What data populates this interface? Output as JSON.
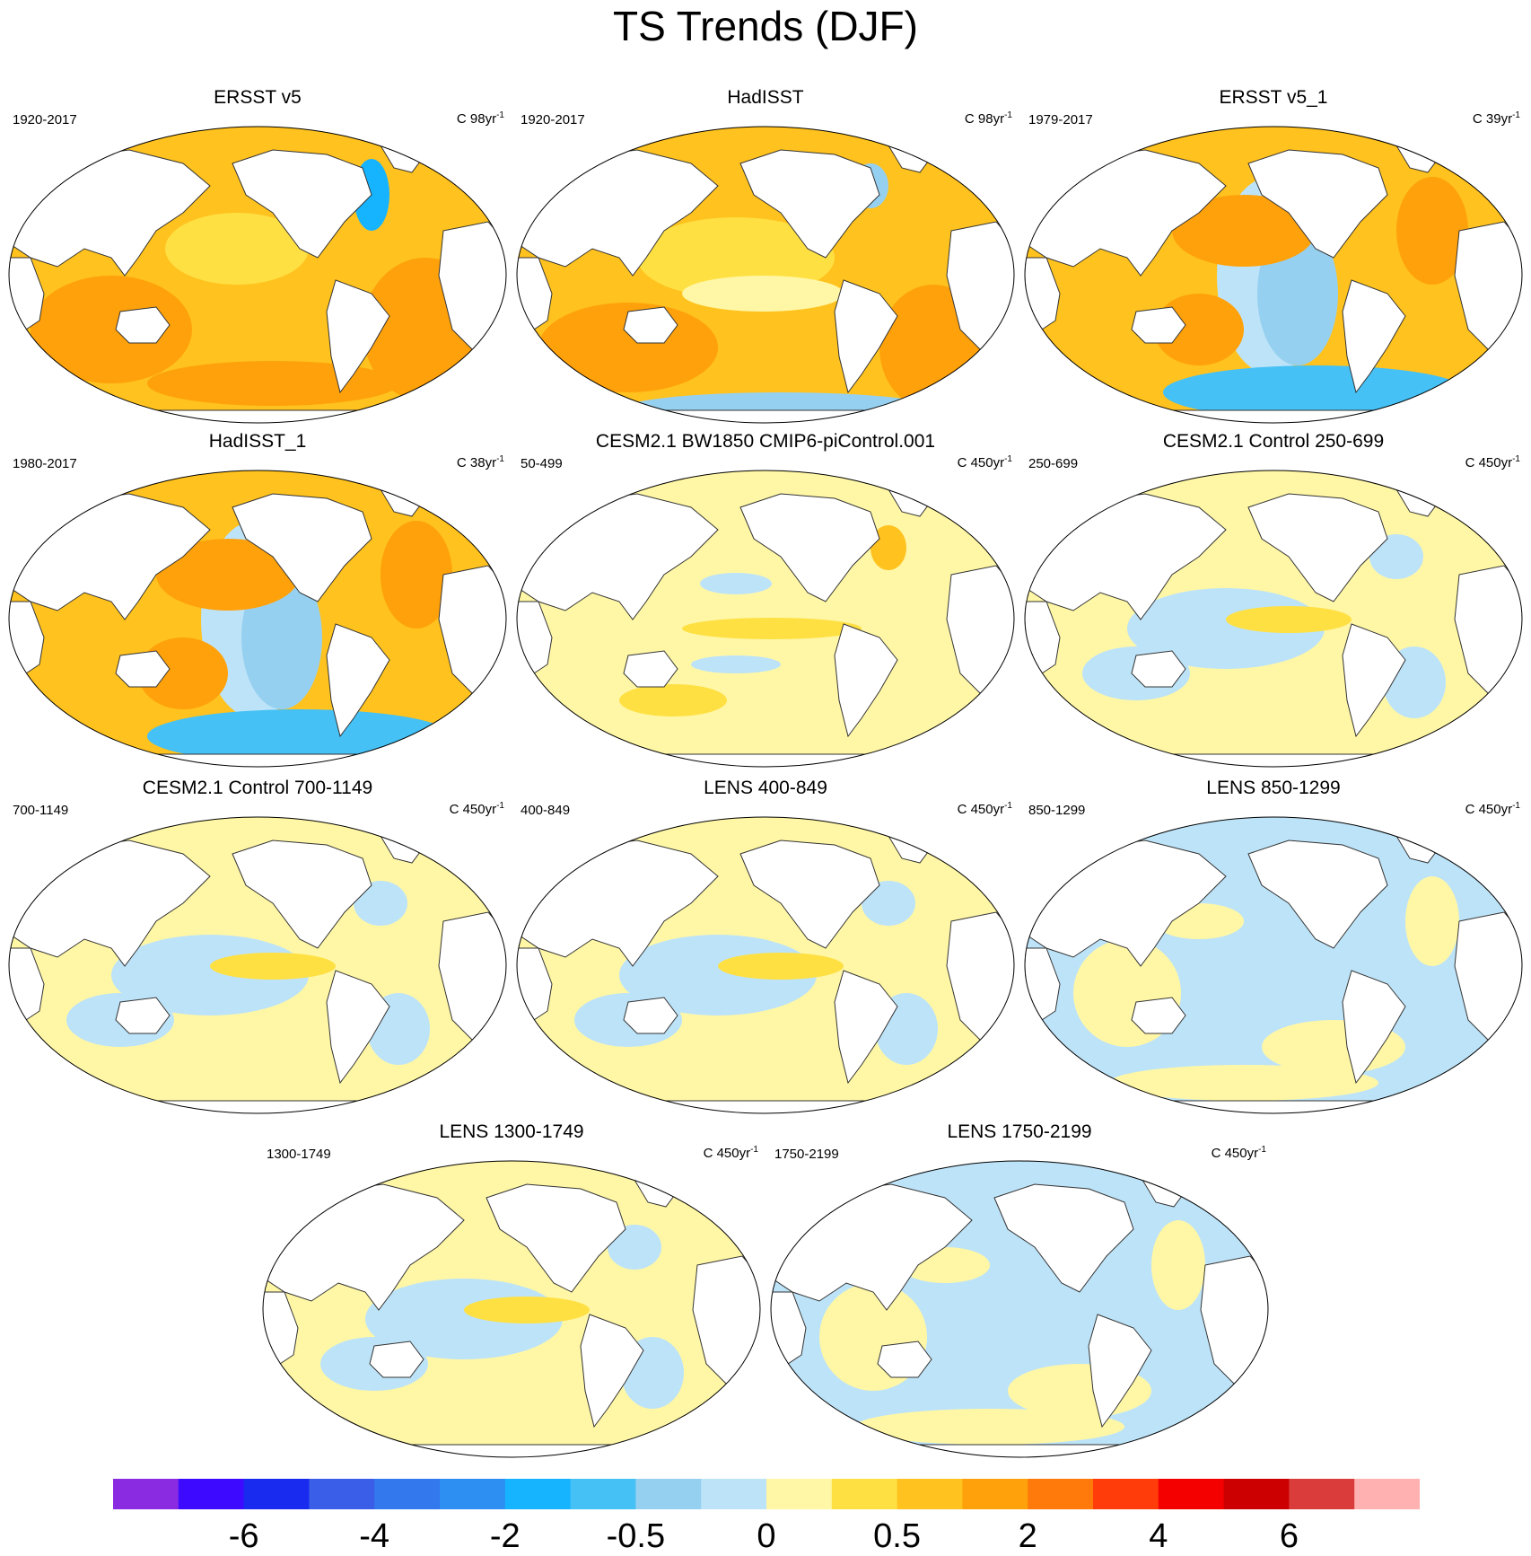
{
  "title": "TS Trends (DJF)",
  "chart_data": {
    "type": "heatmap",
    "title": "TS Trends (DJF)",
    "projection": "robinson-global-maps",
    "colorbar": {
      "colors": [
        "#8a2be2",
        "#3d0aff",
        "#1a2bf0",
        "#3a5ee8",
        "#3478ee",
        "#2e8ff2",
        "#16b4ff",
        "#45c1f5",
        "#96d0f0",
        "#bde3f8",
        "#fff7a6",
        "#ffe043",
        "#ffc21e",
        "#ffa10a",
        "#ff7a0a",
        "#ff3c0a",
        "#f50000",
        "#cc0000",
        "#da3c3c",
        "#ffb0b0"
      ],
      "labels": [
        "-6",
        "-4",
        "-2",
        "-0.5",
        "0",
        "0.5",
        "2",
        "4",
        "6"
      ]
    },
    "panels": [
      {
        "title": "ERSST v5",
        "period": "1920-2017",
        "units": "C 98yr",
        "units_exp": "-1",
        "pattern": "warm_strong"
      },
      {
        "title": "HadISST",
        "period": "1920-2017",
        "units": "C 98yr",
        "units_exp": "-1",
        "pattern": "warm_strong_mixed"
      },
      {
        "title": "ERSST v5_1",
        "period": "1979-2017",
        "units": "C 39yr",
        "units_exp": "-1",
        "pattern": "warm_with_cool_east_pacific"
      },
      {
        "title": "HadISST_1",
        "period": "1980-2017",
        "units": "C 38yr",
        "units_exp": "-1",
        "pattern": "warm_with_cool_east_pacific"
      },
      {
        "title": "CESM2.1 BW1850 CMIP6-piControl.001",
        "period": "50-499",
        "units": "C 450yr",
        "units_exp": "-1",
        "pattern": "near_zero_warm"
      },
      {
        "title": "CESM2.1 Control 250-699",
        "period": "250-699",
        "units": "C 450yr",
        "units_exp": "-1",
        "pattern": "near_zero_mixed"
      },
      {
        "title": "CESM2.1 Control 700-1149",
        "period": "700-1149",
        "units": "C 450yr",
        "units_exp": "-1",
        "pattern": "near_zero_mixed"
      },
      {
        "title": "LENS 400-849",
        "period": "400-849",
        "units": "C 450yr",
        "units_exp": "-1",
        "pattern": "near_zero_mixed"
      },
      {
        "title": "LENS 850-1299",
        "period": "850-1299",
        "units": "C 450yr",
        "units_exp": "-1",
        "pattern": "near_zero_cool"
      },
      {
        "title": "LENS 1300-1749",
        "period": "1300-1749",
        "units": "C 450yr",
        "units_exp": "-1",
        "pattern": "near_zero_mixed"
      },
      {
        "title": "LENS 1750-2199",
        "period": "1750-2199",
        "units": "C 450yr",
        "units_exp": "-1",
        "pattern": "near_zero_cool"
      }
    ]
  }
}
